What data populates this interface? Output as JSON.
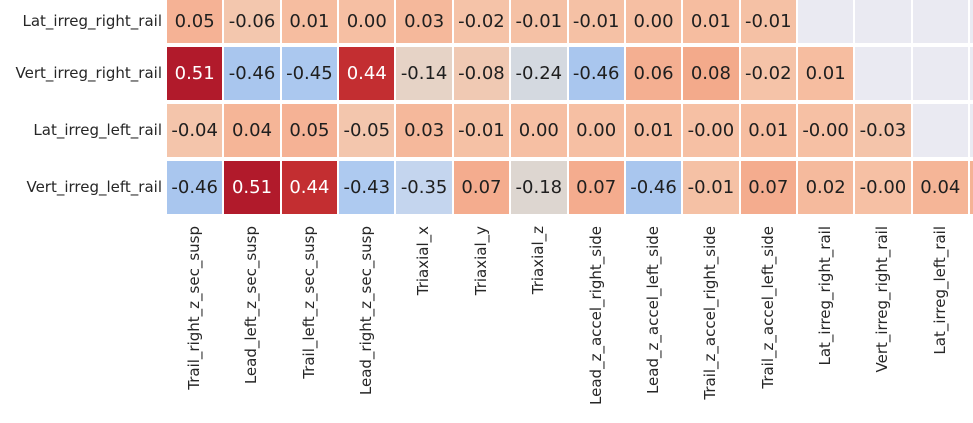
{
  "figure": {
    "background": "#ffffff",
    "gridline_color": "#ffffff",
    "masked_cell_color": "#eaeaf2",
    "label_color": "#262626",
    "value_text_dark": "#1f1f1f",
    "value_text_light": "#ffffff",
    "clipped_right_column_colors": [
      "#eaeaf2",
      "#eaeaf2",
      "#eaeaf2",
      "#f5b295"
    ]
  },
  "chart_data": {
    "type": "heatmap",
    "colormap": "coolwarm",
    "mask": "upper-triangle-masked",
    "x_labels": [
      "Trail_right_z_sec_susp",
      "Lead_left_z_sec_susp",
      "Trail_left_z_sec_susp",
      "Lead_right_z_sec_susp",
      "Triaxial_x",
      "Triaxial_y",
      "Triaxial_z",
      "Lead_z_accel_right_side",
      "Lead_z_accel_left_side",
      "Trail_z_accel_right_side",
      "Trail_z_accel_left_side",
      "Lat_irreg_right_rail",
      "Vert_irreg_right_rail",
      "Lat_irreg_left_rail"
    ],
    "y_labels": [
      "Lat_irreg_right_rail",
      "Vert_irreg_right_rail",
      "Lat_irreg_left_rail",
      "Vert_irreg_left_rail"
    ],
    "values": [
      [
        0.05,
        -0.06,
        0.01,
        0.0,
        0.03,
        -0.02,
        -0.01,
        -0.01,
        0.0,
        0.01,
        -0.01,
        null,
        null,
        null
      ],
      [
        0.51,
        -0.46,
        -0.45,
        0.44,
        -0.14,
        -0.08,
        -0.24,
        -0.46,
        0.06,
        0.08,
        -0.02,
        0.01,
        null,
        null
      ],
      [
        -0.04,
        0.04,
        0.05,
        -0.05,
        0.03,
        -0.01,
        0.0,
        0.0,
        0.01,
        0.0,
        0.01,
        0.0,
        -0.03,
        null
      ],
      [
        -0.46,
        0.51,
        0.44,
        -0.43,
        -0.35,
        0.07,
        -0.18,
        0.07,
        -0.46,
        -0.01,
        0.07,
        0.02,
        0.0,
        0.04
      ]
    ],
    "cell_labels": [
      [
        "0.05",
        "-0.06",
        "0.01",
        "0.00",
        "0.03",
        "-0.02",
        "-0.01",
        "-0.01",
        "0.00",
        "0.01",
        "-0.01",
        null,
        null,
        null
      ],
      [
        "0.51",
        "-0.46",
        "-0.45",
        "0.44",
        "-0.14",
        "-0.08",
        "-0.24",
        "-0.46",
        "0.06",
        "0.08",
        "-0.02",
        "0.01",
        null,
        null
      ],
      [
        "-0.04",
        "0.04",
        "0.05",
        "-0.05",
        "0.03",
        "-0.01",
        "0.00",
        "0.00",
        "0.01",
        "-0.00",
        "0.01",
        "-0.00",
        "-0.03",
        null
      ],
      [
        "-0.46",
        "0.51",
        "0.44",
        "-0.43",
        "-0.35",
        "0.07",
        "-0.18",
        "0.07",
        "-0.46",
        "-0.01",
        "0.07",
        "0.02",
        "-0.00",
        "0.04"
      ]
    ],
    "cell_colors": [
      [
        "#f5b295",
        "#f3c7ae",
        "#f6bda0",
        "#f6bfa3",
        "#f5b89b",
        "#f5c3a8",
        "#f5c1a5",
        "#f5c1a5",
        "#f6bfa3",
        "#f6bda0",
        "#f5c1a5",
        null,
        null,
        null
      ],
      [
        "#b11a2b",
        "#a9c6ee",
        "#abc8ef",
        "#c32e31",
        "#e6d3c6",
        "#f0c9b3",
        "#d4d9e0",
        "#a9c6ee",
        "#f4af91",
        "#f3aa8b",
        "#f5c3a8",
        "#f6bda0",
        null,
        null
      ],
      [
        "#f4c5ab",
        "#f5b597",
        "#f5b295",
        "#f3c6ad",
        "#f5b89b",
        "#f5c1a5",
        "#f6bfa3",
        "#f6bfa3",
        "#f6bda0",
        "#f6c0a4",
        "#f6bda0",
        "#f6c0a4",
        "#f4c4aa",
        null
      ],
      [
        "#a9c6ee",
        "#b11a2b",
        "#c32e31",
        "#aecaf0",
        "#c4d5ee",
        "#f4ac8e",
        "#ddd6d0",
        "#f4ac8e",
        "#a9c6ee",
        "#f5c1a5",
        "#f4ac8e",
        "#f5ba9d",
        "#f6c0a4",
        "#f5b597"
      ]
    ],
    "light_text_cells": [
      [
        1,
        0
      ],
      [
        1,
        3
      ],
      [
        3,
        1
      ],
      [
        3,
        2
      ]
    ]
  }
}
